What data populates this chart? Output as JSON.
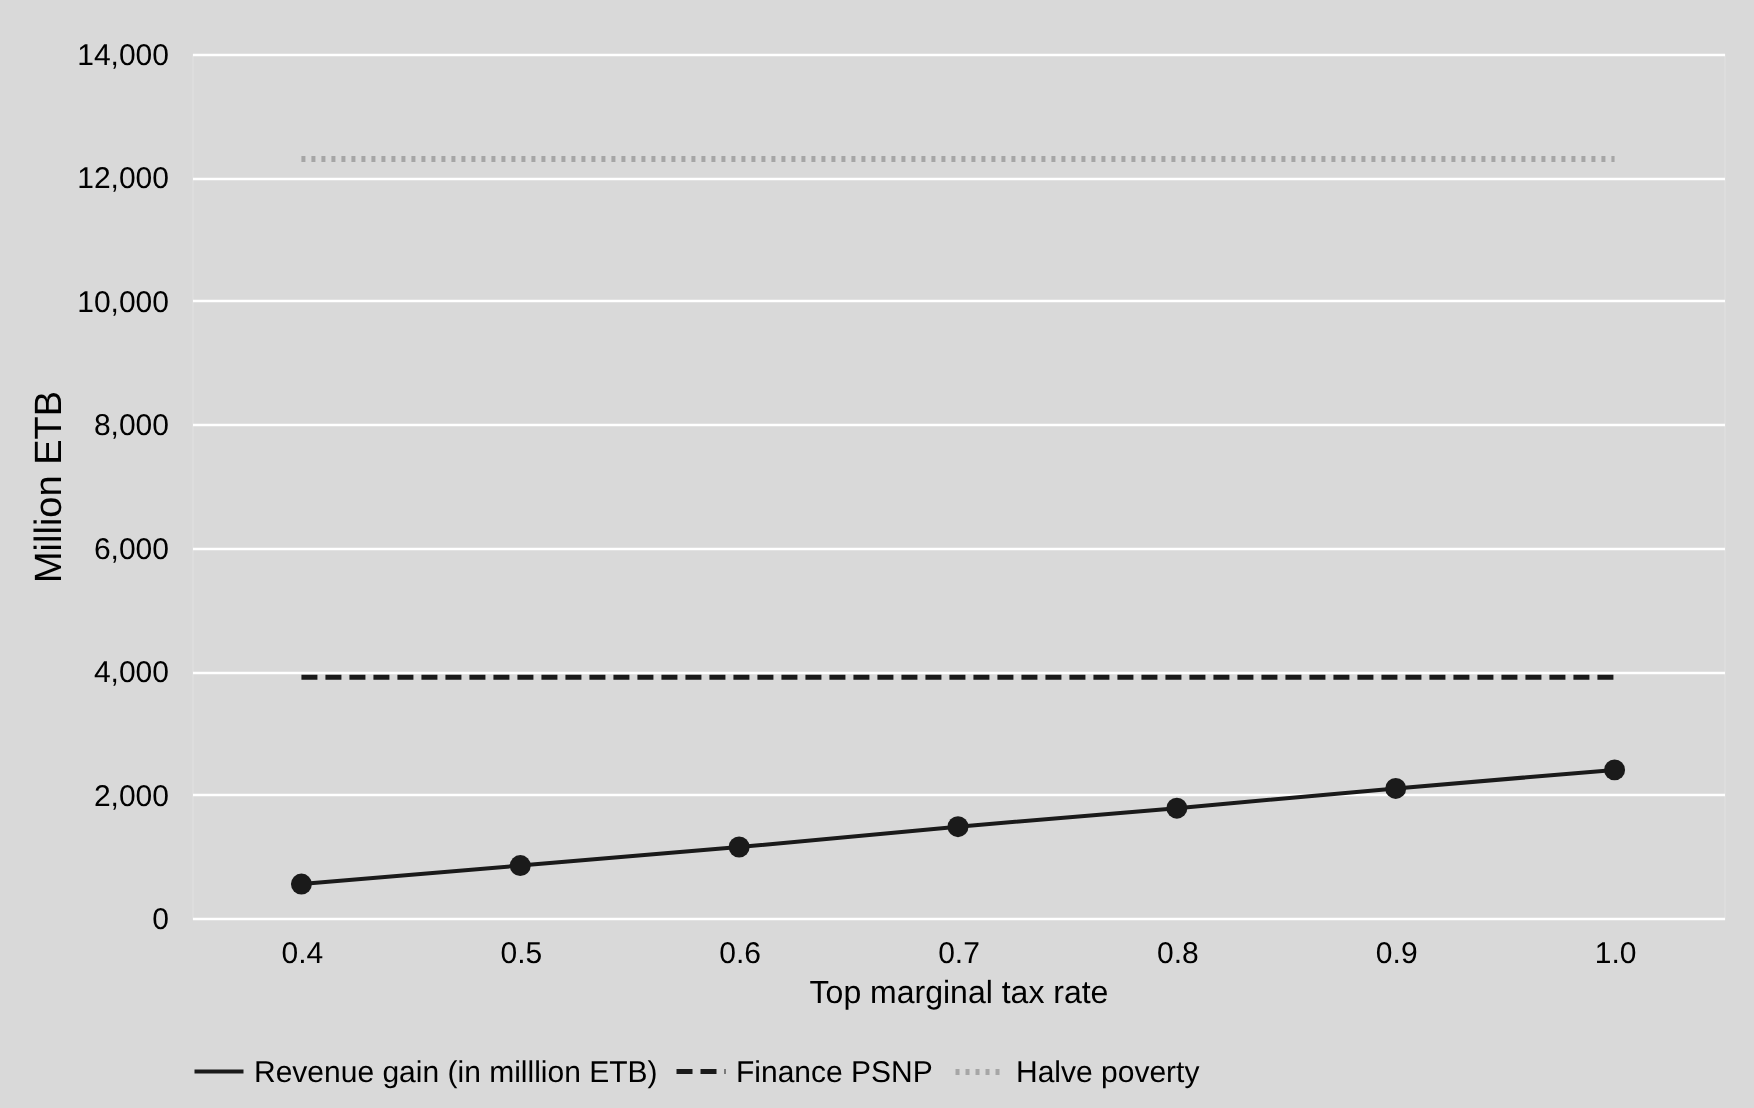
{
  "chart_data": {
    "type": "line",
    "xlabel": "Top marginal tax rate",
    "ylabel": "Million ETB",
    "categories": [
      "0.4",
      "0.5",
      "0.6",
      "0.7",
      "0.8",
      "0.9",
      "1.0"
    ],
    "series": [
      {
        "name": "Revenue gain (in milllion ETB)",
        "color": "#1a1a1a",
        "values": [
          550,
          850,
          1150,
          1480,
          1780,
          2100,
          2400
        ],
        "marker": "circle",
        "line_style": "solid"
      },
      {
        "name": "Finance PSNP",
        "color": "#1a1a1a",
        "values": [
          3900,
          3900,
          3900,
          3900,
          3900,
          3900,
          3900
        ],
        "marker": "none",
        "line_style": "dashed"
      },
      {
        "name": "Halve poverty",
        "color": "#a6a6a6",
        "values": [
          12300,
          12300,
          12300,
          12300,
          12300,
          12300,
          12300
        ],
        "marker": "none",
        "line_style": "dotted"
      }
    ],
    "ylim": [
      0,
      14000
    ],
    "yticks": [
      0,
      {
        "value": 2000,
        "label": "2,000"
      },
      {
        "value": 4000,
        "label": "4,000"
      },
      {
        "value": 6000,
        "label": "6,000"
      },
      {
        "value": 8000,
        "label": "8,000"
      },
      {
        "value": 10000,
        "label": "10,000"
      },
      {
        "value": 12000,
        "label": "12,000"
      },
      {
        "value": 14000,
        "label": "14,000"
      }
    ],
    "grid": "y",
    "legend": "bottom"
  }
}
